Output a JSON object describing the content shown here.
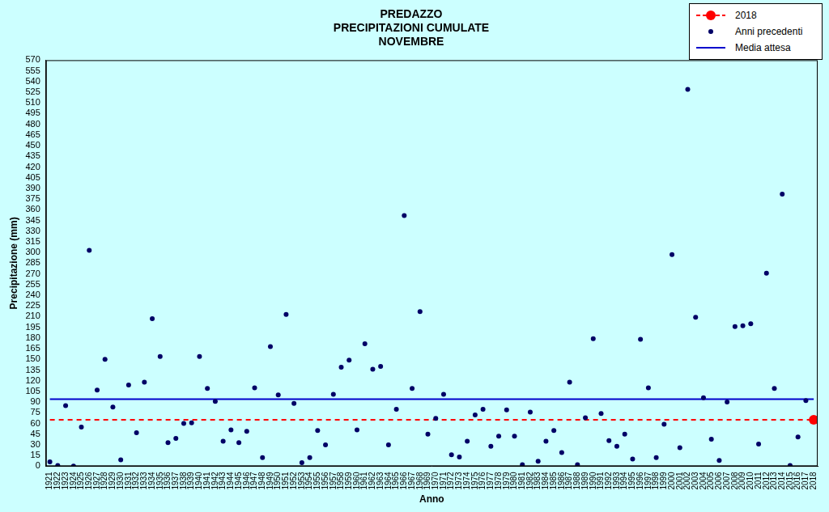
{
  "chart_data": {
    "type": "scatter",
    "title": [
      "PREDAZZO",
      "PRECIPITAZIONI CUMULATE",
      "NOVEMBRE"
    ],
    "x_label": "Anno",
    "y_label": "Precipitazione (mm)",
    "categories": [
      1921,
      1922,
      1923,
      1924,
      1925,
      1926,
      1927,
      1928,
      1929,
      1930,
      1931,
      1932,
      1933,
      1934,
      1935,
      1936,
      1937,
      1938,
      1939,
      1940,
      1941,
      1942,
      1943,
      1944,
      1945,
      1946,
      1947,
      1948,
      1949,
      1950,
      1951,
      1952,
      1953,
      1954,
      1955,
      1956,
      1957,
      1958,
      1959,
      1960,
      1961,
      1962,
      1963,
      1964,
      1965,
      1966,
      1967,
      1968,
      1969,
      1970,
      1971,
      1972,
      1973,
      1974,
      1975,
      1976,
      1977,
      1978,
      1979,
      1980,
      1981,
      1982,
      1983,
      1984,
      1985,
      1986,
      1987,
      1988,
      1989,
      1990,
      1991,
      1992,
      1993,
      1994,
      1995,
      1996,
      1997,
      1998,
      1999,
      2000,
      2001,
      2002,
      2003,
      2004,
      2005,
      2006,
      2007,
      2008,
      2009,
      2010,
      2011,
      2012,
      2013,
      2014,
      2015,
      2016,
      2017,
      2018
    ],
    "series": [
      {
        "name": "2018",
        "type": "line",
        "color": "#ff0000",
        "marker": "circle",
        "line_style": "dashed",
        "values": [
          65,
          65,
          65,
          65,
          65,
          65,
          65,
          65,
          65,
          65,
          65,
          65,
          65,
          65,
          65,
          65,
          65,
          65,
          65,
          65,
          65,
          65,
          65,
          65,
          65,
          65,
          65,
          65,
          65,
          65,
          65,
          65,
          65,
          65,
          65,
          65,
          65,
          65,
          65,
          65,
          65,
          65,
          65,
          65,
          65,
          65,
          65,
          65,
          65,
          65,
          65,
          65,
          65,
          65,
          65,
          65,
          65,
          65,
          65,
          65,
          65,
          65,
          65,
          65,
          65,
          65,
          65,
          65,
          65,
          65,
          65,
          65,
          65,
          65,
          65,
          65,
          65,
          65,
          65,
          65,
          65,
          65,
          65,
          65,
          65,
          65,
          65,
          65,
          65,
          65,
          65,
          65,
          65,
          65,
          65,
          65,
          65,
          65
        ]
      },
      {
        "name": "Anni precedenti",
        "type": "scatter",
        "color": "#000066",
        "marker": "circle",
        "values": [
          6,
          1,
          85,
          0,
          55,
          303,
          107,
          150,
          83,
          9,
          114,
          47,
          118,
          207,
          154,
          33,
          39,
          60,
          61,
          154,
          109,
          91,
          35,
          51,
          33,
          49,
          110,
          12,
          168,
          100,
          213,
          88,
          5,
          12,
          50,
          30,
          101,
          139,
          149,
          51,
          172,
          136,
          140,
          30,
          80,
          352,
          109,
          217,
          45,
          67,
          101,
          16,
          13,
          35,
          72,
          80,
          28,
          42,
          79,
          42,
          2,
          76,
          7,
          35,
          50,
          19,
          118,
          2,
          68,
          179,
          74,
          36,
          28,
          45,
          10,
          178,
          110,
          12,
          59,
          297,
          26,
          529,
          209,
          96,
          38,
          8,
          90,
          196,
          197,
          200,
          31,
          271,
          109,
          382,
          1,
          41,
          92,
          null
        ]
      },
      {
        "name": "Media attesa",
        "type": "line",
        "color": "#0000cc",
        "marker": "none",
        "line_style": "solid",
        "values": [
          94,
          94,
          94,
          94,
          94,
          94,
          94,
          94,
          94,
          94,
          94,
          94,
          94,
          94,
          94,
          94,
          94,
          94,
          94,
          94,
          94,
          94,
          94,
          94,
          94,
          94,
          94,
          94,
          94,
          94,
          94,
          94,
          94,
          94,
          94,
          94,
          94,
          94,
          94,
          94,
          94,
          94,
          94,
          94,
          94,
          94,
          94,
          94,
          94,
          94,
          94,
          94,
          94,
          94,
          94,
          94,
          94,
          94,
          94,
          94,
          94,
          94,
          94,
          94,
          94,
          94,
          94,
          94,
          94,
          94,
          94,
          94,
          94,
          94,
          94,
          94,
          94,
          94,
          94,
          94,
          94,
          94,
          94,
          94,
          94,
          94,
          94,
          94,
          94,
          94,
          94,
          94,
          94,
          94,
          94,
          94,
          94,
          94
        ]
      }
    ],
    "ylim": [
      0,
      570
    ],
    "yticks": [
      0,
      15,
      30,
      45,
      60,
      75,
      90,
      105,
      120,
      135,
      150,
      165,
      180,
      195,
      210,
      225,
      240,
      255,
      270,
      285,
      300,
      315,
      330,
      345,
      360,
      375,
      390,
      405,
      420,
      435,
      450,
      465,
      480,
      495,
      510,
      525,
      540,
      555,
      570
    ],
    "grid": false,
    "legend": "top-right"
  }
}
